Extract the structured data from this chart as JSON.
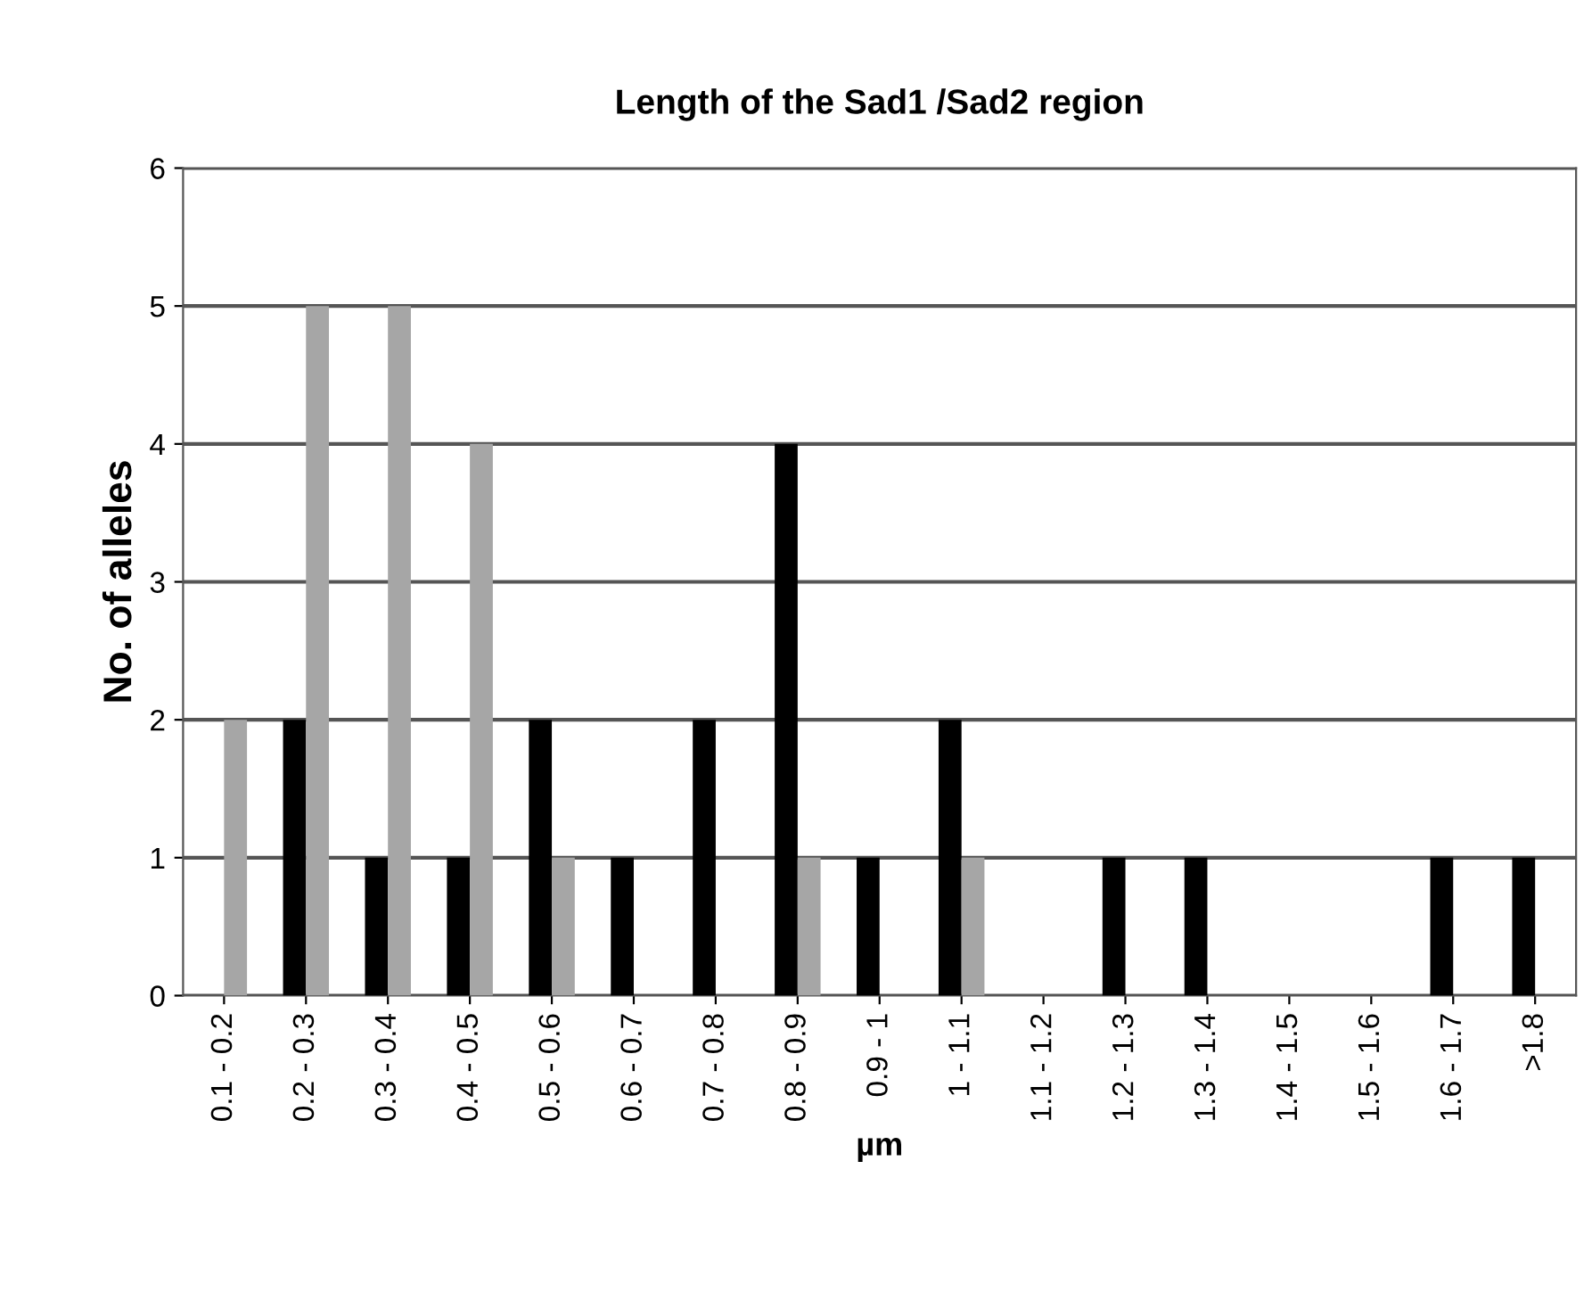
{
  "chart_data": {
    "type": "bar",
    "title": "Length of the Sad1 /Sad2 region",
    "xlabel": "µm",
    "ylabel": "No. of alleles",
    "categories": [
      "0.1 - 0.2",
      "0.2 - 0.3",
      "0.3 - 0.4",
      "0.4 - 0.5",
      "0.5 - 0.6",
      "0.6 - 0.7",
      "0.7 - 0.8",
      "0.8 - 0.9",
      "0.9 - 1",
      "1 - 1.1",
      "1.1 - 1.2",
      "1.2 - 1.3",
      "1.3 - 1.4",
      "1.4 - 1.5",
      "1.5 - 1.6",
      "1.6 - 1.7",
      ">1.8"
    ],
    "series": [
      {
        "color": "#000000",
        "values": [
          0,
          2,
          1,
          1,
          2,
          1,
          2,
          4,
          1,
          2,
          0,
          1,
          1,
          0,
          0,
          1,
          1
        ]
      },
      {
        "color": "#a6a6a6",
        "values": [
          2,
          5,
          5,
          4,
          1,
          0,
          0,
          1,
          0,
          1,
          0,
          0,
          0,
          0,
          0,
          0,
          0
        ]
      }
    ],
    "ylim": [
      0,
      6
    ],
    "yticks": [
      0,
      1,
      2,
      3,
      4,
      5,
      6
    ],
    "grid": "y",
    "legend": false
  }
}
